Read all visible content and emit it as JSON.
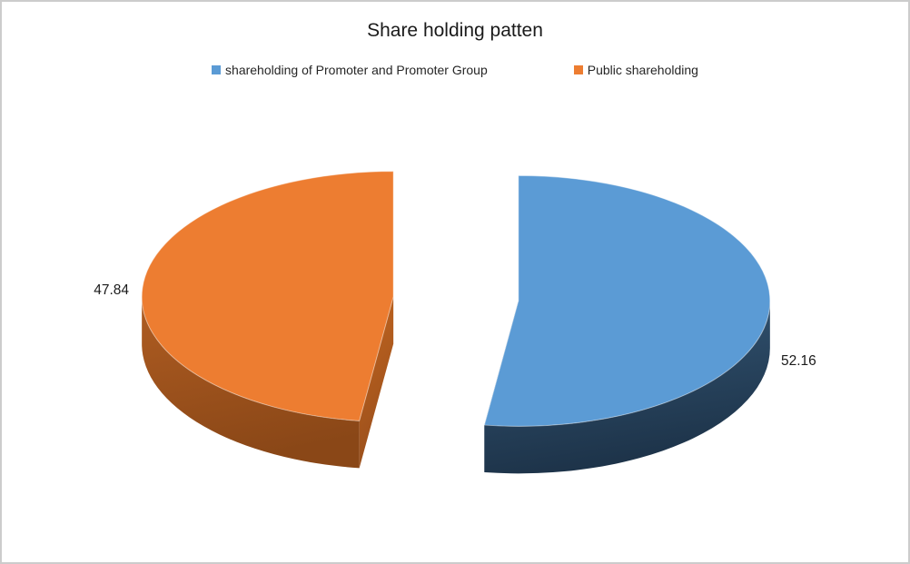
{
  "frame": {
    "background": "#ffffff",
    "border_color": "#cccccc"
  },
  "chart_data": {
    "type": "pie",
    "style": "3d-exploded-pie",
    "title": "Share holding patten",
    "legend_position": "top",
    "rotation_start_deg": 0,
    "labels_shown": true,
    "slices": [
      {
        "key": "promoter",
        "label": "shareholding of Promoter and Promoter Group",
        "value": 52.16,
        "data_label": "52.16",
        "color": "#5B9BD5",
        "wall_light": "#355877",
        "wall_dark": "#1d3349",
        "cut_light": "#2c4a68",
        "cut_dark": "#1d3349"
      },
      {
        "key": "public",
        "label": "Public shareholding",
        "value": 47.84,
        "data_label": "47.84",
        "color": "#ED7D31",
        "wall_light": "#b05d22",
        "wall_dark": "#8a4717",
        "cut_light": "#c3661f",
        "cut_dark": "#9a4f1c"
      }
    ]
  }
}
